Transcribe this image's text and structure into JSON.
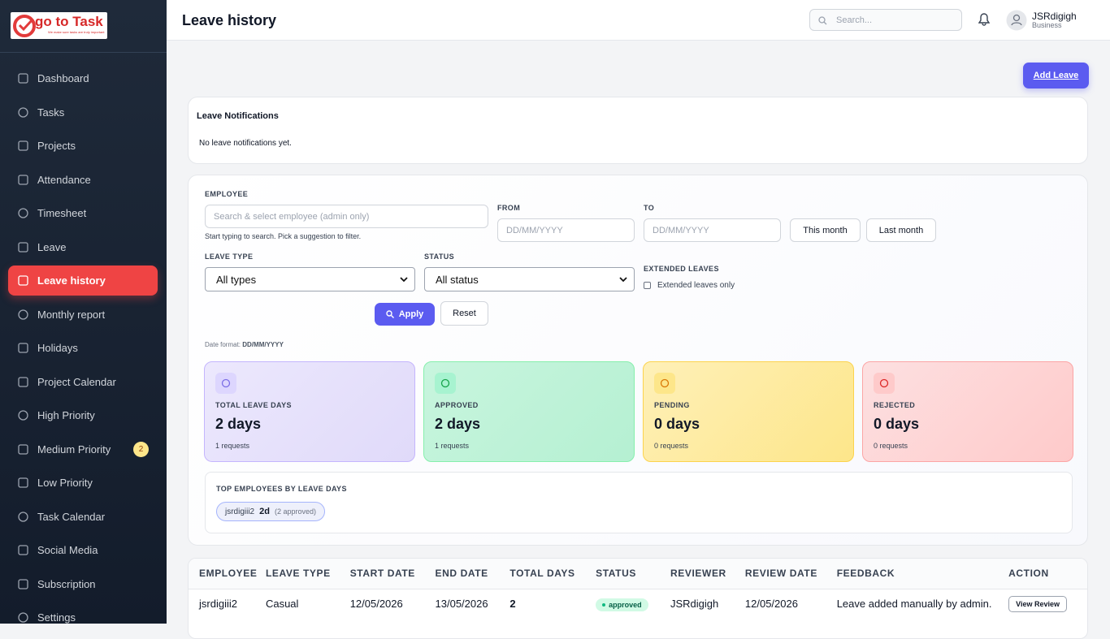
{
  "logo": {
    "title": "go to Task",
    "tagline": "We make sure tasks are truly important"
  },
  "sidebar": {
    "items": [
      {
        "label": "Dashboard"
      },
      {
        "label": "Tasks"
      },
      {
        "label": "Projects"
      },
      {
        "label": "Attendance"
      },
      {
        "label": "Timesheet"
      },
      {
        "label": "Leave"
      },
      {
        "label": "Leave history",
        "active": true
      },
      {
        "label": "Monthly report"
      },
      {
        "label": "Holidays"
      },
      {
        "label": "Project Calendar"
      },
      {
        "label": "High Priority"
      },
      {
        "label": "Medium Priority",
        "badge": "2"
      },
      {
        "label": "Low Priority"
      },
      {
        "label": "Task Calendar"
      },
      {
        "label": "Social Media"
      },
      {
        "label": "Subscription"
      },
      {
        "label": "Settings"
      }
    ]
  },
  "header": {
    "title": "Leave history",
    "search_placeholder": "Search...",
    "user_name": "JSRdigigh",
    "user_role": "Business"
  },
  "add_button": "Add Leave",
  "notifications": {
    "title": "Leave Notifications",
    "message": "No leave notifications yet."
  },
  "filters": {
    "employee_label": "EMPLOYEE",
    "employee_placeholder": "Search & select employee (admin only)",
    "employee_hint": "Start typing to search. Pick a suggestion to filter.",
    "from_label": "FROM",
    "from_placeholder": "DD/MM/YYYY",
    "to_label": "TO",
    "to_placeholder": "DD/MM/YYYY",
    "this_month": "This month",
    "last_month": "Last month",
    "leave_type_label": "LEAVE TYPE",
    "leave_type_value": "All types",
    "status_label": "STATUS",
    "status_value": "All status",
    "extended_label": "EXTENDED LEAVES",
    "extended_checkbox": "Extended leaves only",
    "apply": "Apply",
    "reset": "Reset",
    "date_format_label": "Date format:",
    "date_format_value": "DD/MM/YYYY"
  },
  "stats": [
    {
      "label": "TOTAL LEAVE DAYS",
      "value": "2 days",
      "sub": "1 requests"
    },
    {
      "label": "APPROVED",
      "value": "2 days",
      "sub": "1 requests"
    },
    {
      "label": "PENDING",
      "value": "0 days",
      "sub": "0 requests"
    },
    {
      "label": "REJECTED",
      "value": "0 days",
      "sub": "0 requests"
    }
  ],
  "top_employees": {
    "title": "TOP EMPLOYEES BY LEAVE DAYS",
    "chips": [
      {
        "name": "jsrdigiii2",
        "days": "2d",
        "note": "(2 approved)"
      }
    ]
  },
  "table": {
    "headers": [
      "EMPLOYEE",
      "LEAVE TYPE",
      "START DATE",
      "END DATE",
      "TOTAL DAYS",
      "STATUS",
      "REVIEWER",
      "REVIEW DATE",
      "FEEDBACK",
      "ACTION"
    ],
    "rows": [
      [
        "jsrdigiii2",
        "Casual",
        "12/05/2026",
        "13/05/2026",
        "2",
        "approved",
        "JSRdigigh",
        "12/05/2026",
        "Leave added manually by admin.",
        "View Review"
      ]
    ]
  }
}
